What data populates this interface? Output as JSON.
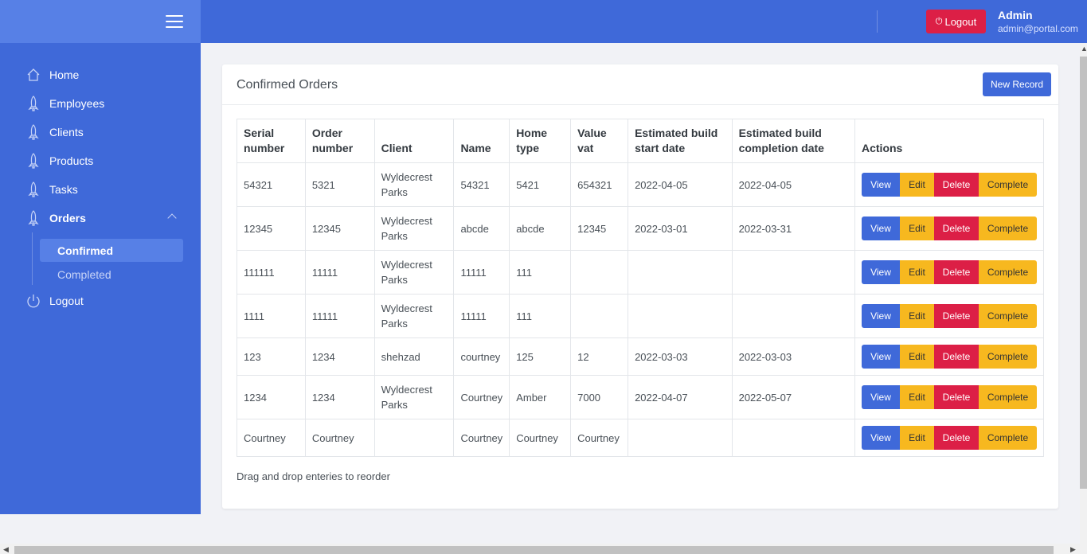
{
  "header": {
    "logout_label": "Logout",
    "user_name": "Admin",
    "user_email": "admin@portal.com"
  },
  "sidebar": {
    "items": [
      {
        "label": "Home",
        "icon": "home-icon"
      },
      {
        "label": "Employees",
        "icon": "rocket-icon"
      },
      {
        "label": "Clients",
        "icon": "rocket-icon"
      },
      {
        "label": "Products",
        "icon": "rocket-icon"
      },
      {
        "label": "Tasks",
        "icon": "rocket-icon"
      },
      {
        "label": "Orders",
        "icon": "rocket-icon"
      }
    ],
    "orders_sub": [
      {
        "label": "Confirmed",
        "active": true
      },
      {
        "label": "Completed",
        "active": false
      }
    ],
    "logout_label": "Logout"
  },
  "card": {
    "title": "Confirmed Orders",
    "new_record_label": "New Record",
    "footer_note": "Drag and drop enteries to reorder"
  },
  "table": {
    "headers": [
      "Serial number",
      "Order number",
      "Client",
      "Name",
      "Home type",
      "Value vat",
      "Estimated build start date",
      "Estimated build completion date",
      "Actions"
    ],
    "rows": [
      [
        "54321",
        "5321",
        "Wyldecrest Parks",
        "54321",
        "5421",
        "654321",
        "2022-04-05",
        "2022-04-05"
      ],
      [
        "12345",
        "12345",
        "Wyldecrest Parks",
        "abcde",
        "abcde",
        "12345",
        "2022-03-01",
        "2022-03-31"
      ],
      [
        "111111",
        "11111",
        "Wyldecrest Parks",
        "11111",
        "111",
        "",
        "",
        ""
      ],
      [
        "1111",
        "11111",
        "Wyldecrest Parks",
        "11111",
        "111",
        "",
        "",
        ""
      ],
      [
        "123",
        "1234",
        "shehzad",
        "courtney",
        "125",
        "12",
        "2022-03-03",
        "2022-03-03"
      ],
      [
        "1234",
        "1234",
        "Wyldecrest Parks",
        "Courtney",
        "Amber",
        "7000",
        "2022-04-07",
        "2022-05-07"
      ],
      [
        "Courtney",
        "Courtney",
        "",
        "Courtney",
        "Courtney",
        "Courtney",
        "",
        ""
      ]
    ],
    "actions": {
      "view": "View",
      "edit": "Edit",
      "delete": "Delete",
      "complete": "Complete"
    }
  },
  "colors": {
    "primary": "#3f69d9",
    "danger": "#dc1f46",
    "warning": "#f7b81f"
  }
}
